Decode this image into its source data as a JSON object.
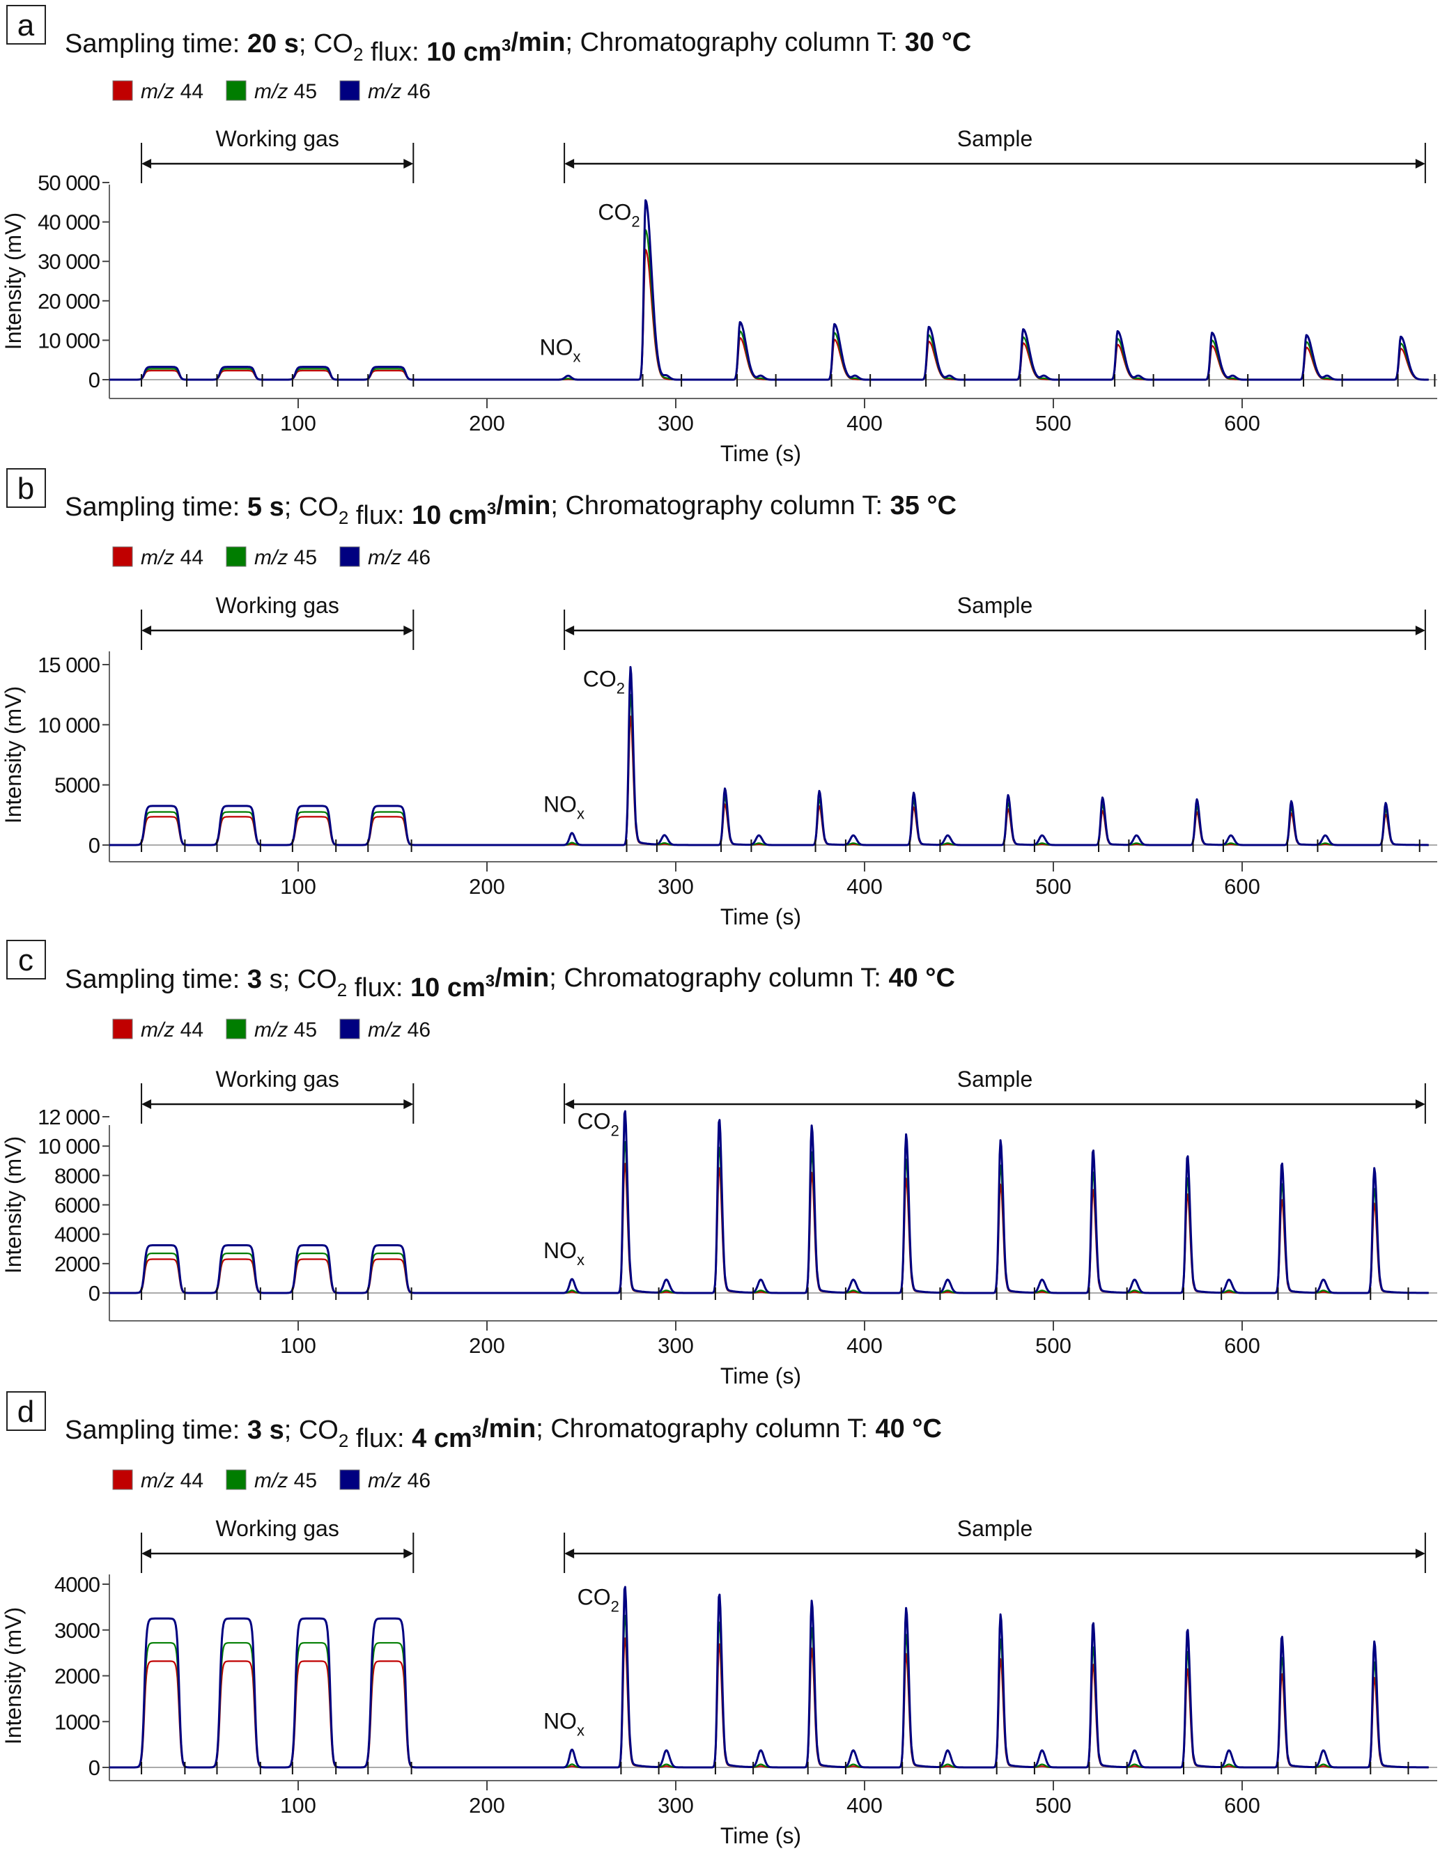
{
  "legend": [
    {
      "italic": "m/z",
      "label": "44",
      "color": "#c00000"
    },
    {
      "italic": "m/z",
      "label": "45",
      "color": "#007d00"
    },
    {
      "italic": "m/z",
      "label": "46",
      "color": "#000080"
    }
  ],
  "chart_data": [
    {
      "type": "line",
      "panel": "a",
      "title": {
        "parts": [
          {
            "text": "Sampling time: ",
            "bold": false
          },
          {
            "text": "20 s",
            "bold": true
          },
          {
            "text": "; CO",
            "bold": false
          },
          {
            "sub": "2"
          },
          {
            "text": " flux: ",
            "bold": false
          },
          {
            "text": "10 cm",
            "bold": true
          },
          {
            "sup": "3"
          },
          {
            "text": "/min",
            "bold": true
          },
          {
            "text": "; Chromatography column T: ",
            "bold": false
          },
          {
            "text": "30 °C",
            "bold": true
          }
        ]
      },
      "xlabel": "Time (s)",
      "ylabel": "Intensity (mV)",
      "xlim": [
        0,
        703
      ],
      "ylim": [
        -4000,
        54000
      ],
      "xticks": [
        100,
        200,
        300,
        400,
        500,
        600
      ],
      "yticks": [
        0,
        10000,
        20000,
        30000,
        40000,
        50000
      ],
      "ytick_labels": [
        "0",
        "10 000",
        "20 000",
        "30 000",
        "40 000",
        "50 000"
      ],
      "grid": false,
      "legend_position": "top-left",
      "annotations": {
        "working_gas": {
          "label": "Working gas",
          "x_range": [
            17,
            161
          ]
        },
        "sample": {
          "label": "Sample",
          "x_range": [
            241,
            697
          ]
        },
        "co2_label": {
          "text": "CO",
          "sub": "2",
          "x": 284
        },
        "nox_label": {
          "text": "NO",
          "sub": "x",
          "x": 243
        }
      },
      "working_gas_pulses": {
        "starts": [
          17,
          57,
          97,
          137
        ],
        "duration": 20,
        "levels": {
          "m/z 44": 2300,
          "m/z 45": 2750,
          "m/z 46": 3250
        }
      },
      "nox_peaks": {
        "t": [
          243
        ],
        "m/z 46": 1000,
        "m/z 45": 300,
        "m/z 44": 100
      },
      "co2_peaks": {
        "t": [
          284,
          334,
          384,
          434,
          484,
          534,
          584,
          634,
          684
        ],
        "m/z 46": [
          45500,
          14600,
          14100,
          13400,
          12800,
          12300,
          11900,
          11300,
          10900
        ],
        "m/z 45": [
          38000,
          12300,
          11900,
          11300,
          10800,
          10400,
          10000,
          9600,
          9200
        ],
        "m/z 44": [
          33000,
          10600,
          10200,
          9700,
          9300,
          8900,
          8600,
          8200,
          7900
        ]
      },
      "post_peaks": {
        "offset": 11,
        "m/z 46": 1000,
        "m/z 45": 350,
        "m/z 44": 100
      },
      "series": [
        {
          "name": "m/z 44",
          "color": "#c00000"
        },
        {
          "name": "m/z 45",
          "color": "#007d00"
        },
        {
          "name": "m/z 46",
          "color": "#000080"
        }
      ]
    },
    {
      "type": "line",
      "panel": "b",
      "title": {
        "parts": [
          {
            "text": "Sampling time: ",
            "bold": false
          },
          {
            "text": "5 s",
            "bold": true
          },
          {
            "text": "; CO",
            "bold": false
          },
          {
            "sub": "2"
          },
          {
            "text": " flux: ",
            "bold": false
          },
          {
            "text": "10 cm",
            "bold": true
          },
          {
            "sup": "3"
          },
          {
            "text": "/min",
            "bold": true
          },
          {
            "text": "; Chromatography column T: ",
            "bold": false
          },
          {
            "text": "35 °C",
            "bold": true
          }
        ]
      },
      "xlabel": "Time (s)",
      "ylabel": "Intensity (mV)",
      "xlim": [
        0,
        703
      ],
      "ylim": [
        -1400,
        18200
      ],
      "xticks": [
        100,
        200,
        300,
        400,
        500,
        600
      ],
      "yticks": [
        0,
        5000,
        10000,
        15000
      ],
      "ytick_labels": [
        "0",
        "5000",
        "10 000",
        "15 000"
      ],
      "grid": false,
      "legend_position": "top-left",
      "annotations": {
        "working_gas": {
          "label": "Working gas",
          "x_range": [
            17,
            161
          ]
        },
        "sample": {
          "label": "Sample",
          "x_range": [
            241,
            697
          ]
        },
        "co2_label": {
          "text": "CO",
          "sub": "2",
          "x": 276
        },
        "nox_label": {
          "text": "NO",
          "sub": "x",
          "x": 245
        }
      },
      "working_gas_pulses": {
        "starts": [
          17,
          57,
          97,
          137
        ],
        "duration": 20,
        "levels": {
          "m/z 44": 2350,
          "m/z 45": 2750,
          "m/z 46": 3250
        }
      },
      "nox_peaks": {
        "t": [
          245
        ],
        "m/z 46": 1000,
        "m/z 45": 200,
        "m/z 44": 80
      },
      "co2_peaks": {
        "t": [
          276,
          326,
          376,
          426,
          476,
          526,
          576,
          626,
          676
        ],
        "m/z 46": [
          14800,
          4700,
          4500,
          4350,
          4150,
          3950,
          3800,
          3650,
          3500
        ],
        "m/z 45": [
          12500,
          4000,
          3800,
          3700,
          3500,
          3350,
          3200,
          3100,
          2950
        ],
        "m/z 44": [
          10700,
          3400,
          3250,
          3150,
          3000,
          2850,
          2750,
          2650,
          2550
        ]
      },
      "post_peaks": {
        "offset": 18,
        "m/z 46": 800,
        "m/z 45": 150,
        "m/z 44": 60
      },
      "series": [
        {
          "name": "m/z 44",
          "color": "#c00000"
        },
        {
          "name": "m/z 45",
          "color": "#007d00"
        },
        {
          "name": "m/z 46",
          "color": "#000080"
        }
      ]
    },
    {
      "type": "line",
      "panel": "c",
      "title": {
        "parts": [
          {
            "text": "Sampling time: ",
            "bold": false
          },
          {
            "text": "3",
            "bold": true
          },
          {
            "text": " s; CO",
            "bold": false
          },
          {
            "sub": "2"
          },
          {
            "text": " flux: ",
            "bold": false
          },
          {
            "text": "10 cm",
            "bold": true
          },
          {
            "sup": "3"
          },
          {
            "text": "/min",
            "bold": true
          },
          {
            "text": "; Chromatography column T: ",
            "bold": false
          },
          {
            "text": "40 °C",
            "bold": true
          }
        ]
      },
      "xlabel": "Time (s)",
      "ylabel": "Intensity (mV)",
      "xlim": [
        0,
        703
      ],
      "ylim": [
        -1100,
        13300
      ],
      "xticks": [
        100,
        200,
        300,
        400,
        500,
        600
      ],
      "yticks": [
        0,
        2000,
        4000,
        6000,
        8000,
        10000,
        12000
      ],
      "ytick_labels": [
        "0",
        "2000",
        "4000",
        "6000",
        "8000",
        "10 000",
        "12 000"
      ],
      "grid": false,
      "legend_position": "top-left",
      "annotations": {
        "working_gas": {
          "label": "Working gas",
          "x_range": [
            17,
            161
          ]
        },
        "sample": {
          "label": "Sample",
          "x_range": [
            241,
            697
          ]
        },
        "co2_label": {
          "text": "CO",
          "sub": "2",
          "x": 273
        },
        "nox_label": {
          "text": "NO",
          "sub": "x",
          "x": 245
        }
      },
      "working_gas_pulses": {
        "starts": [
          17,
          57,
          97,
          137
        ],
        "duration": 20,
        "levels": {
          "m/z 44": 2300,
          "m/z 45": 2700,
          "m/z 46": 3250
        }
      },
      "nox_peaks": {
        "t": [
          245
        ],
        "m/z 46": 950,
        "m/z 45": 180,
        "m/z 44": 70
      },
      "co2_peaks": {
        "t": [
          273,
          323,
          372,
          422,
          472,
          521,
          571,
          621,
          670
        ],
        "m/z 46": [
          12500,
          11900,
          11400,
          10800,
          10400,
          9800,
          9400,
          8900,
          8500
        ],
        "m/z 45": [
          10400,
          10000,
          9600,
          9100,
          8700,
          8300,
          7900,
          7500,
          7100
        ],
        "m/z 44": [
          8900,
          8600,
          8200,
          7800,
          7400,
          7100,
          6800,
          6400,
          6100
        ]
      },
      "post_peaks": {
        "offset": 22,
        "m/z 46": 900,
        "m/z 45": 170,
        "m/z 44": 60
      },
      "series": [
        {
          "name": "m/z 44",
          "color": "#c00000"
        },
        {
          "name": "m/z 45",
          "color": "#007d00"
        },
        {
          "name": "m/z 46",
          "color": "#000080"
        }
      ]
    },
    {
      "type": "line",
      "panel": "d",
      "title": {
        "parts": [
          {
            "text": "Sampling time: ",
            "bold": false
          },
          {
            "text": "3 s",
            "bold": true
          },
          {
            "text": "; CO",
            "bold": false
          },
          {
            "sub": "2"
          },
          {
            "text": " flux: ",
            "bold": false
          },
          {
            "text": "4 cm",
            "bold": true
          },
          {
            "sup": "3"
          },
          {
            "text": "/min",
            "bold": true
          },
          {
            "text": "; Chromatography column T: ",
            "bold": false
          },
          {
            "text": "40 °C",
            "bold": true
          }
        ]
      },
      "xlabel": "Time (s)",
      "ylabel": "Intensity (mV)",
      "xlim": [
        0,
        703
      ],
      "ylim": [
        -360,
        4770
      ],
      "xticks": [
        100,
        200,
        300,
        400,
        500,
        600
      ],
      "yticks": [
        0,
        1000,
        2000,
        3000,
        4000
      ],
      "ytick_labels": [
        "0",
        "1000",
        "2000",
        "3000",
        "4000"
      ],
      "grid": false,
      "legend_position": "top-left",
      "annotations": {
        "working_gas": {
          "label": "Working gas",
          "x_range": [
            17,
            161
          ]
        },
        "sample": {
          "label": "Sample",
          "x_range": [
            241,
            697
          ]
        },
        "co2_label": {
          "text": "CO",
          "sub": "2",
          "x": 273
        },
        "nox_label": {
          "text": "NO",
          "sub": "x",
          "x": 245
        }
      },
      "working_gas_pulses": {
        "starts": [
          17,
          57,
          97,
          137
        ],
        "duration": 20,
        "levels": {
          "m/z 44": 2320,
          "m/z 45": 2720,
          "m/z 46": 3250
        }
      },
      "nox_peaks": {
        "t": [
          245
        ],
        "m/z 46": 390,
        "m/z 45": 70,
        "m/z 44": 25
      },
      "co2_peaks": {
        "t": [
          273,
          323,
          372,
          422,
          472,
          521,
          571,
          621,
          670
        ],
        "m/z 46": [
          3980,
          3810,
          3640,
          3480,
          3340,
          3180,
          3030,
          2880,
          2750
        ],
        "m/z 45": [
          3350,
          3200,
          3050,
          2900,
          2800,
          2650,
          2550,
          2420,
          2300
        ],
        "m/z 44": [
          2850,
          2720,
          2600,
          2480,
          2370,
          2270,
          2170,
          2060,
          1960
        ]
      },
      "post_peaks": {
        "offset": 22,
        "m/z 46": 370,
        "m/z 45": 65,
        "m/z 44": 25
      },
      "series": [
        {
          "name": "m/z 44",
          "color": "#c00000"
        },
        {
          "name": "m/z 45",
          "color": "#007d00"
        },
        {
          "name": "m/z 46",
          "color": "#000080"
        }
      ]
    }
  ]
}
